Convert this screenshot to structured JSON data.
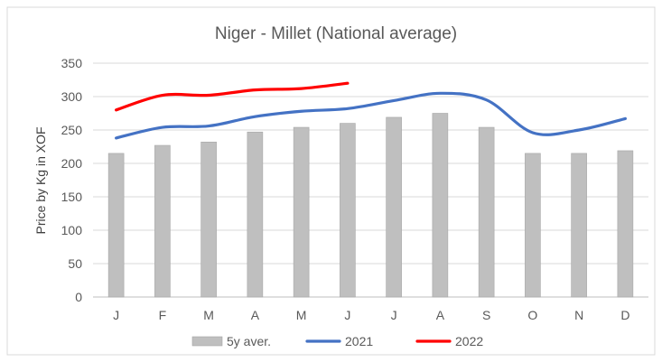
{
  "chart_data": {
    "type": "bar",
    "title": "Niger - Millet  (National average)",
    "xlabel": "",
    "ylabel": "Price by Kg in XOF",
    "categories": [
      "J",
      "F",
      "M",
      "A",
      "M",
      "J",
      "J",
      "A",
      "S",
      "O",
      "N",
      "D"
    ],
    "ylim": [
      0,
      350
    ],
    "yticks": [
      0,
      50,
      100,
      150,
      200,
      250,
      300,
      350
    ],
    "grid": true,
    "legend_position": "bottom",
    "series": [
      {
        "name": "5y aver.",
        "kind": "bar",
        "color": "#bfbfbf",
        "values": [
          215,
          227,
          232,
          247,
          254,
          260,
          269,
          275,
          254,
          215,
          215,
          219
        ]
      },
      {
        "name": "2021",
        "kind": "line",
        "color": "#4472c4",
        "values": [
          238,
          254,
          256,
          270,
          278,
          282,
          294,
          305,
          295,
          246,
          250,
          267
        ]
      },
      {
        "name": "2022",
        "kind": "line",
        "color": "#ff0000",
        "values": [
          280,
          302,
          302,
          310,
          312,
          320,
          null,
          null,
          null,
          null,
          null,
          null
        ]
      }
    ]
  }
}
